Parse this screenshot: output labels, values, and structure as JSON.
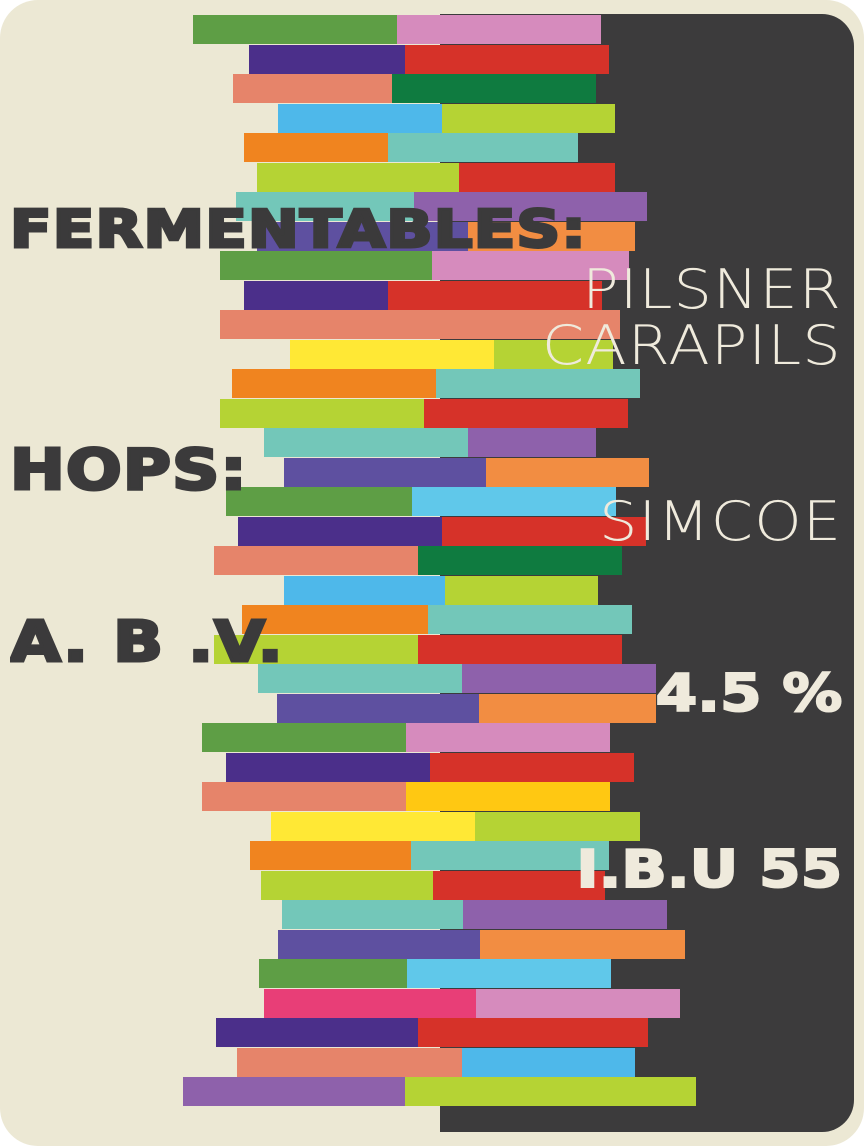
{
  "labels": {
    "fermentables": "FERMENTABLES:",
    "hops": "HOPS:",
    "abv": "A. B .V.",
    "ibu": "I.B.U  55"
  },
  "values": {
    "fermentables": [
      "PILSNER",
      "CARAPILS"
    ],
    "hops": [
      "SIMCOE"
    ],
    "abv": "4.5 %"
  },
  "colors": {
    "background": "#ece8d4",
    "dark_panel": "#3c3b3c",
    "heading_text": "#3b3a3b",
    "value_text": "#efeadc",
    "bar_palette": [
      "#5e9e45",
      "#d68bbd",
      "#4b2f8a",
      "#d63229",
      "#e6846a",
      "#0f7b40",
      "#4eb8ea",
      "#b5d334",
      "#f0841f",
      "#73c7b9",
      "#8e61ab",
      "#f28d42",
      "#ffe835",
      "#5e50a0",
      "#ffc812",
      "#e83e77",
      "#60c8ea"
    ]
  }
}
